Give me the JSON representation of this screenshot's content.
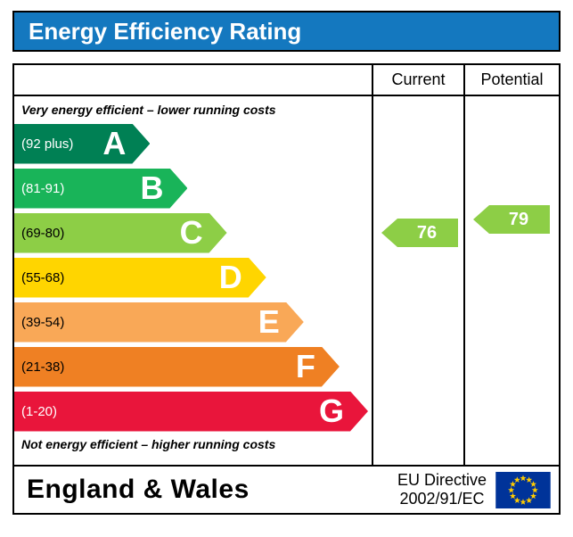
{
  "title": "Energy Efficiency Rating",
  "columns": {
    "current": "Current",
    "potential": "Potential"
  },
  "top_note": "Very energy efficient – lower running costs",
  "bottom_note": "Not energy efficient – higher running costs",
  "footer": {
    "region": "England & Wales",
    "directive_line1": "EU Directive",
    "directive_line2": "2002/91/EC"
  },
  "colors": {
    "header_bg": "#1478bf",
    "border": "#000000",
    "flag_bg": "#003399",
    "flag_star": "#ffcc00",
    "band_letter": "#ffffff"
  },
  "chart_data": {
    "type": "bar",
    "title": "Energy Efficiency Rating",
    "bands": [
      {
        "letter": "A",
        "range": "(92 plus)",
        "color": "#008054",
        "text_color": "#ffffff",
        "width_pct": 38
      },
      {
        "letter": "B",
        "range": "(81-91)",
        "color": "#19b459",
        "text_color": "#ffffff",
        "width_pct": 48.5
      },
      {
        "letter": "C",
        "range": "(69-80)",
        "color": "#8dce46",
        "text_color": "#000000",
        "width_pct": 59.5
      },
      {
        "letter": "D",
        "range": "(55-68)",
        "color": "#ffd500",
        "text_color": "#000000",
        "width_pct": 70.5
      },
      {
        "letter": "E",
        "range": "(39-54)",
        "color": "#f9a857",
        "text_color": "#000000",
        "width_pct": 81
      },
      {
        "letter": "F",
        "range": "(21-38)",
        "color": "#ef8023",
        "text_color": "#000000",
        "width_pct": 91
      },
      {
        "letter": "G",
        "range": "(1-20)",
        "color": "#e9153b",
        "text_color": "#ffffff",
        "width_pct": 99
      }
    ],
    "current": {
      "value": "76",
      "band": "C",
      "color": "#8dce46"
    },
    "potential": {
      "value": "79",
      "band": "C",
      "color": "#8dce46"
    }
  }
}
